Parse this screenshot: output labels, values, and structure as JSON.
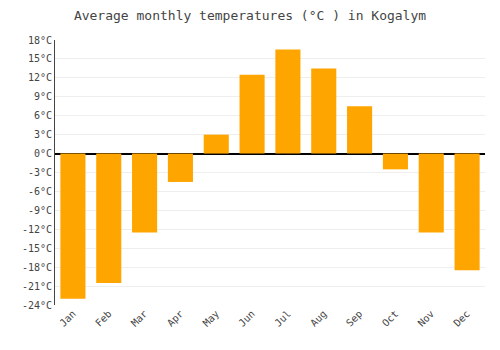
{
  "chart_data": {
    "type": "bar",
    "title": "Average monthly temperatures (°C ) in Kogalym",
    "categories": [
      "Jan",
      "Feb",
      "Mar",
      "Apr",
      "May",
      "Jun",
      "Jul",
      "Aug",
      "Sep",
      "Oct",
      "Nov",
      "Dec"
    ],
    "values": [
      -23,
      -20.5,
      -12.5,
      -4.5,
      3,
      12.5,
      16.5,
      13.5,
      7.5,
      -2.5,
      -12.5,
      -18.5
    ],
    "color": "#FFA500",
    "ylim": [
      -24,
      18
    ],
    "yticks": [
      {
        "value": -24,
        "label": "-24°C"
      },
      {
        "value": -21,
        "label": "-21°C"
      },
      {
        "value": -18,
        "label": "-18°C"
      },
      {
        "value": -15,
        "label": "-15°C"
      },
      {
        "value": -12,
        "label": "-12°C"
      },
      {
        "value": -9,
        "label": "-9°C"
      },
      {
        "value": -6,
        "label": "-6°C"
      },
      {
        "value": -3,
        "label": "-3°C"
      },
      {
        "value": 0,
        "label": "0°C"
      },
      {
        "value": 3,
        "label": "3°C"
      },
      {
        "value": 6,
        "label": "6°C"
      },
      {
        "value": 9,
        "label": "9°C"
      },
      {
        "value": 12,
        "label": "12°C"
      },
      {
        "value": 15,
        "label": "15°C"
      },
      {
        "value": 18,
        "label": "18°C"
      }
    ],
    "grid": true
  }
}
